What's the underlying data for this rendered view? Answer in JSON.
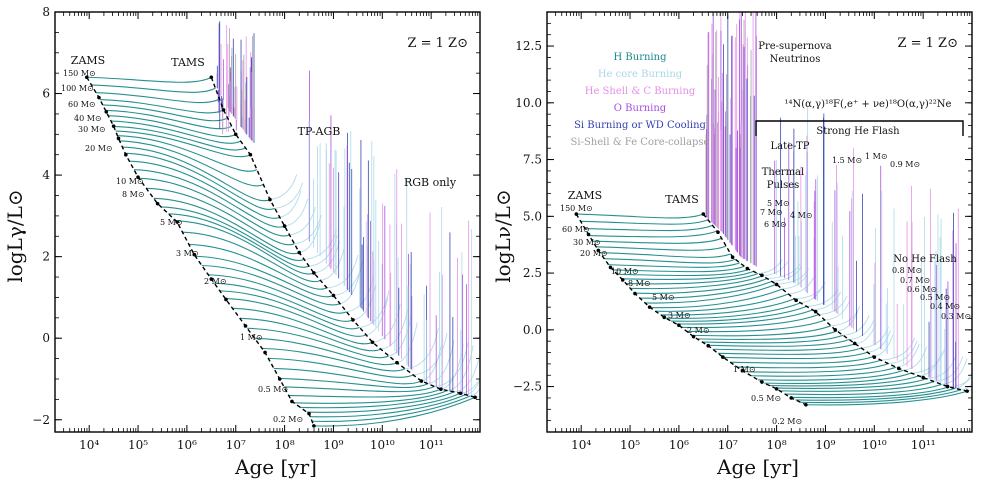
{
  "colors": {
    "h_burning": "#1a8a8a",
    "he_core": "#a8d8e8",
    "he_shell_c": "#e58ee8",
    "o_burning": "#a64de0",
    "si_wd": "#3340b0",
    "si_shell_fe": "#a0a0a0",
    "axis": "#000000"
  },
  "chart_data": [
    {
      "type": "line",
      "panel": "left",
      "title": "",
      "xlabel": "Age [yr]",
      "ylabel": "logLγ/L⊙",
      "xscale": "log",
      "xlim_log10": [
        3.3,
        12.0
      ],
      "ylim": [
        -2.3,
        8.0
      ],
      "x_ticks": [
        {
          "log": 4,
          "label": "10⁴"
        },
        {
          "log": 5,
          "label": "10⁵"
        },
        {
          "log": 6,
          "label": "10⁶"
        },
        {
          "log": 7,
          "label": "10⁷"
        },
        {
          "log": 8,
          "label": "10⁸"
        },
        {
          "log": 9,
          "label": "10⁹"
        },
        {
          "log": 10,
          "label": "10¹⁰"
        },
        {
          "log": 11,
          "label": "10¹¹"
        }
      ],
      "y_ticks": [
        {
          "value": -2,
          "label": "−2"
        },
        {
          "value": 0,
          "label": "0"
        },
        {
          "value": 2,
          "label": "2"
        },
        {
          "value": 4,
          "label": "4"
        },
        {
          "value": 6,
          "label": "6"
        },
        {
          "value": 8,
          "label": "8"
        }
      ],
      "metallicity_label": "Z = 1 Z⊙",
      "annotations": [
        "ZAMS",
        "TAMS",
        "TP-AGB",
        "RGB only"
      ],
      "mass_labels": [
        "150 M⊙",
        "100 M⊙",
        "60 M⊙",
        "40 M⊙",
        "30 M⊙",
        "20 M⊙",
        "10 M⊙",
        "8 M⊙",
        "5 M⊙",
        "3 M⊙",
        "2 M⊙",
        "1 M⊙",
        "0.5 M⊙",
        "0.2 M⊙"
      ],
      "zams_track": {
        "x_log": [
          3.95,
          4.2,
          4.35,
          4.5,
          4.6,
          4.75,
          5.0,
          5.4,
          5.8,
          6.15,
          6.5,
          6.8,
          7.2,
          7.6,
          7.9,
          8.15,
          8.5,
          8.6
        ],
        "y": [
          6.4,
          5.9,
          5.55,
          5.2,
          4.9,
          4.5,
          3.95,
          3.3,
          2.85,
          2.05,
          1.45,
          0.95,
          0.3,
          -0.35,
          -1.0,
          -1.55,
          -1.85,
          -2.15
        ]
      },
      "tams_track": {
        "x_log": [
          6.5,
          6.75,
          7.0,
          7.3,
          7.7,
          8.0,
          8.3,
          8.6,
          9.0,
          9.4,
          9.8,
          10.3,
          10.8,
          11.2,
          11.6,
          11.9
        ],
        "y": [
          6.4,
          5.6,
          5.0,
          4.5,
          3.4,
          2.75,
          2.1,
          1.6,
          1.05,
          0.45,
          -0.1,
          -0.6,
          -1.05,
          -1.25,
          -1.35,
          -1.45
        ]
      },
      "spike_ranges_log": [
        [
          6.6,
          7.4
        ],
        [
          8.5,
          11.9
        ]
      ]
    },
    {
      "type": "line",
      "panel": "right",
      "title": "",
      "xlabel": "Age [yr]",
      "ylabel": "logLν/L⊙",
      "xscale": "log",
      "xlim_log10": [
        3.3,
        12.0
      ],
      "ylim": [
        -4.5,
        14.0
      ],
      "x_ticks": [
        {
          "log": 4,
          "label": "10⁴"
        },
        {
          "log": 5,
          "label": "10⁵"
        },
        {
          "log": 6,
          "label": "10⁶"
        },
        {
          "log": 7,
          "label": "10⁷"
        },
        {
          "log": 8,
          "label": "10⁸"
        },
        {
          "log": 9,
          "label": "10⁹"
        },
        {
          "log": 10,
          "label": "10¹⁰"
        },
        {
          "log": 11,
          "label": "10¹¹"
        }
      ],
      "y_ticks": [
        {
          "value": -2.5,
          "label": "−2.5"
        },
        {
          "value": 0.0,
          "label": "0.0"
        },
        {
          "value": 2.5,
          "label": "2.5"
        },
        {
          "value": 5.0,
          "label": "5.0"
        },
        {
          "value": 7.5,
          "label": "7.5"
        },
        {
          "value": 10.0,
          "label": "10.0"
        },
        {
          "value": 12.5,
          "label": "12.5"
        }
      ],
      "metallicity_label": "Z = 1 Z⊙",
      "legend": [
        {
          "label": "H Burning",
          "color_key": "h_burning"
        },
        {
          "label": "He core Burning",
          "color_key": "he_core"
        },
        {
          "label": "He Shell & C Burning",
          "color_key": "he_shell_c"
        },
        {
          "label": "O Burning",
          "color_key": "o_burning"
        },
        {
          "label": "Si Burning or WD Cooling",
          "color_key": "si_wd"
        },
        {
          "label": "Si-Shell & Fe Core-collapse",
          "color_key": "si_shell_fe"
        }
      ],
      "annotations": [
        "ZAMS",
        "TAMS",
        "Pre-supernova",
        "Neutrinos",
        "Late-TP",
        "Thermal",
        "Pulses",
        "Strong He Flash",
        "No He Flash"
      ],
      "reaction_label": "¹⁴N(α,γ)¹⁸F(,e⁺ + νe)¹⁸O(α,γ)²²Ne",
      "mass_labels": [
        "150 M⊙",
        "60 M⊙",
        "30 M⊙",
        "20 M⊙",
        "10 M⊙",
        "8 M⊙",
        "5 M⊙",
        "3 M⊙",
        "2 M⊙",
        "1 M⊙",
        "0.5 M⊙",
        "0.2 M⊙"
      ],
      "thermal_pulse_labels": [
        "5 M⊙",
        "7 M⊙",
        "4 M⊙",
        "6 M⊙"
      ],
      "he_flash_labels": [
        "1.5 M⊙",
        "1 M⊙",
        "0.9 M⊙"
      ],
      "no_flash_labels": [
        "0.8 M⊙",
        "0.7 M⊙",
        "0.6 M⊙",
        "0.5 M⊙",
        "0.4 M⊙",
        "0.3 M⊙"
      ],
      "zams_track": {
        "x_log": [
          3.9,
          4.15,
          4.35,
          4.6,
          4.85,
          5.1,
          5.4,
          5.7,
          6.0,
          6.3,
          6.6,
          6.9,
          7.3,
          7.7,
          8.0,
          8.3,
          8.6
        ],
        "y": [
          5.1,
          4.2,
          3.5,
          2.75,
          2.2,
          1.6,
          1.0,
          0.55,
          0.2,
          -0.3,
          -0.7,
          -1.2,
          -1.8,
          -2.3,
          -2.6,
          -3.0,
          -3.3
        ]
      },
      "tams_track": {
        "x_log": [
          6.5,
          6.8,
          7.1,
          7.4,
          7.7,
          8.0,
          8.4,
          8.8,
          9.2,
          9.6,
          10.0,
          10.5,
          11.0,
          11.5,
          11.9
        ],
        "y": [
          5.1,
          4.3,
          3.2,
          2.7,
          2.4,
          2.0,
          1.3,
          0.8,
          0.0,
          -0.6,
          -1.2,
          -1.7,
          -2.1,
          -2.5,
          -2.7
        ]
      },
      "spike_ranges_log": [
        [
          6.55,
          7.6
        ],
        [
          7.9,
          11.8
        ]
      ]
    }
  ]
}
